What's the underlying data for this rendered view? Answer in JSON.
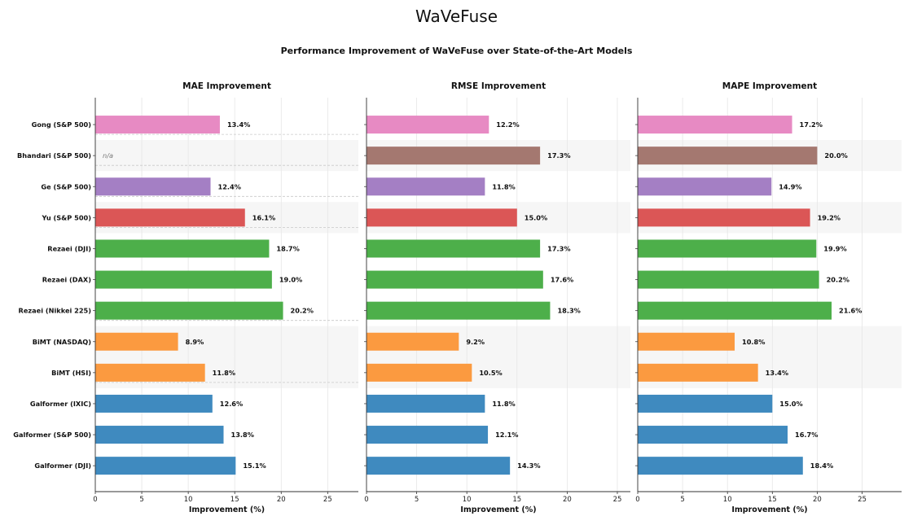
{
  "header": {
    "app_title": "WaVeFuse",
    "figure_title": "Performance Improvement of WaVeFuse over State-of-the-Art Models"
  },
  "colors": {
    "gong": "#e78ac3",
    "bhandari": "#a47870",
    "ge": "#a47fc4",
    "yu": "#db5656",
    "rezaei": "#4daf4a",
    "bimt": "#fb9a40",
    "galformer": "#3f8abf"
  },
  "chart_data": [
    {
      "type": "bar",
      "orientation": "horizontal",
      "title": "MAE Improvement",
      "xlabel": "Improvement (%)",
      "xlim": [
        0,
        28.3
      ],
      "xticks": [
        0,
        5,
        10,
        15,
        20,
        25
      ],
      "grid": true,
      "categories": [
        "Gong (S&P 500)",
        "Bhandari (S&P 500)",
        "Ge (S&P 500)",
        "Yu (S&P 500)",
        "Rezaei (DJI)",
        "Rezaei (DAX)",
        "Rezaei (Nikkei 225)",
        "BiMT (NASDAQ)",
        "BiMT (HSI)",
        "Galformer (IXIC)",
        "Galformer (S&P 500)",
        "Galformer (DJI)"
      ],
      "values": [
        13.4,
        null,
        12.4,
        16.1,
        18.7,
        19.0,
        20.2,
        8.9,
        11.8,
        12.6,
        13.8,
        15.1
      ],
      "value_labels": [
        "13.4%",
        "n/a",
        "12.4%",
        "16.1%",
        "18.7%",
        "19.0%",
        "20.2%",
        "8.9%",
        "11.8%",
        "12.6%",
        "13.8%",
        "15.1%"
      ]
    },
    {
      "type": "bar",
      "orientation": "horizontal",
      "title": "RMSE Improvement",
      "xlabel": "Improvement (%)",
      "xlim": [
        0,
        26.3
      ],
      "xticks": [
        0,
        5,
        10,
        15,
        20,
        25
      ],
      "grid": true,
      "categories": [
        "Gong (S&P 500)",
        "Bhandari (S&P 500)",
        "Ge (S&P 500)",
        "Yu (S&P 500)",
        "Rezaei (DJI)",
        "Rezaei (DAX)",
        "Rezaei (Nikkei 225)",
        "BiMT (NASDAQ)",
        "BiMT (HSI)",
        "Galformer (IXIC)",
        "Galformer (S&P 500)",
        "Galformer (DJI)"
      ],
      "values": [
        12.2,
        17.3,
        11.8,
        15.0,
        17.3,
        17.6,
        18.3,
        9.2,
        10.5,
        11.8,
        12.1,
        14.3
      ],
      "value_labels": [
        "12.2%",
        "17.3%",
        "11.8%",
        "15.0%",
        "17.3%",
        "17.6%",
        "18.3%",
        "9.2%",
        "10.5%",
        "11.8%",
        "12.1%",
        "14.3%"
      ]
    },
    {
      "type": "bar",
      "orientation": "horizontal",
      "title": "MAPE Improvement",
      "xlabel": "Improvement (%)",
      "xlim": [
        0,
        29.4
      ],
      "xticks": [
        0,
        5,
        10,
        15,
        20,
        25
      ],
      "grid": true,
      "categories": [
        "Gong (S&P 500)",
        "Bhandari (S&P 500)",
        "Ge (S&P 500)",
        "Yu (S&P 500)",
        "Rezaei (DJI)",
        "Rezaei (DAX)",
        "Rezaei (Nikkei 225)",
        "BiMT (NASDAQ)",
        "BiMT (HSI)",
        "Galformer (IXIC)",
        "Galformer (S&P 500)",
        "Galformer (DJI)"
      ],
      "values": [
        17.2,
        20.0,
        14.9,
        19.2,
        19.9,
        20.2,
        21.6,
        10.8,
        13.4,
        15.0,
        16.7,
        18.4
      ],
      "value_labels": [
        "17.2%",
        "20.0%",
        "14.9%",
        "19.2%",
        "19.9%",
        "20.2%",
        "21.6%",
        "10.8%",
        "13.4%",
        "15.0%",
        "16.7%",
        "18.4%"
      ]
    }
  ],
  "bar_colors": [
    "gong",
    "bhandari",
    "ge",
    "yu",
    "rezaei",
    "rezaei",
    "rezaei",
    "bimt",
    "bimt",
    "galformer",
    "galformer",
    "galformer"
  ],
  "shaded_rows": [
    1,
    3,
    7,
    8
  ]
}
